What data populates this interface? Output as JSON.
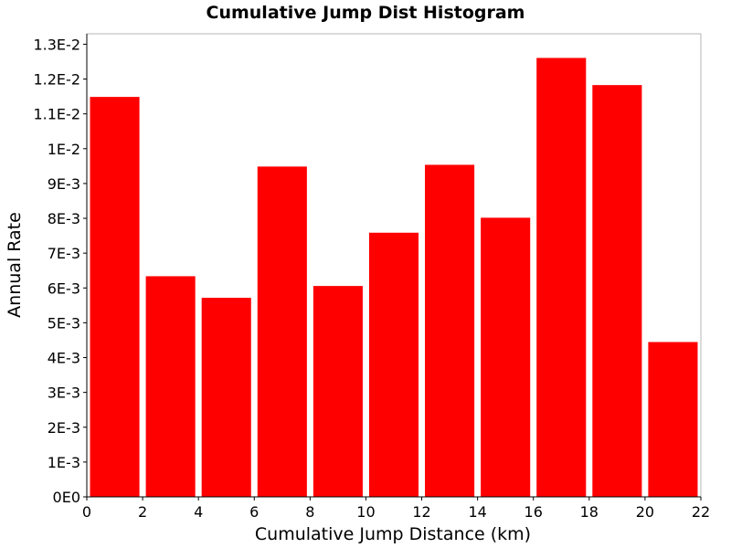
{
  "chart_data": {
    "type": "bar",
    "title": "Cumulative Jump Dist Histogram",
    "xlabel": "Cumulative Jump Distance (km)",
    "ylabel": "Annual Rate",
    "xlim": [
      0,
      22
    ],
    "ylim": [
      0,
      0.0133
    ],
    "x_ticks": [
      0,
      2,
      4,
      6,
      8,
      10,
      12,
      14,
      16,
      18,
      20,
      22
    ],
    "x_tick_labels": [
      "0",
      "2",
      "4",
      "6",
      "8",
      "10",
      "12",
      "14",
      "16",
      "18",
      "20",
      "22"
    ],
    "y_ticks": [
      0,
      0.001,
      0.002,
      0.003,
      0.004,
      0.005,
      0.006,
      0.007,
      0.008,
      0.009,
      0.01,
      0.011,
      0.012,
      0.013
    ],
    "y_tick_labels": [
      "0E0",
      "1E-3",
      "2E-3",
      "3E-3",
      "4E-3",
      "5E-3",
      "6E-3",
      "7E-3",
      "8E-3",
      "9E-3",
      "1E-2",
      "1.1E-2",
      "1.2E-2",
      "1.3E-2"
    ],
    "grid": true,
    "bar_color": "#ff0000",
    "bins": [
      {
        "x0": 0,
        "x1": 2,
        "value": 0.0115
      },
      {
        "x0": 2,
        "x1": 4,
        "value": 0.00635
      },
      {
        "x0": 4,
        "x1": 6,
        "value": 0.00573
      },
      {
        "x0": 6,
        "x1": 8,
        "value": 0.0095
      },
      {
        "x0": 8,
        "x1": 10,
        "value": 0.00607
      },
      {
        "x0": 10,
        "x1": 12,
        "value": 0.0076
      },
      {
        "x0": 12,
        "x1": 14,
        "value": 0.00955
      },
      {
        "x0": 14,
        "x1": 16,
        "value": 0.00803
      },
      {
        "x0": 16,
        "x1": 18,
        "value": 0.01262
      },
      {
        "x0": 18,
        "x1": 20,
        "value": 0.01184
      },
      {
        "x0": 20,
        "x1": 22,
        "value": 0.00446
      }
    ]
  }
}
